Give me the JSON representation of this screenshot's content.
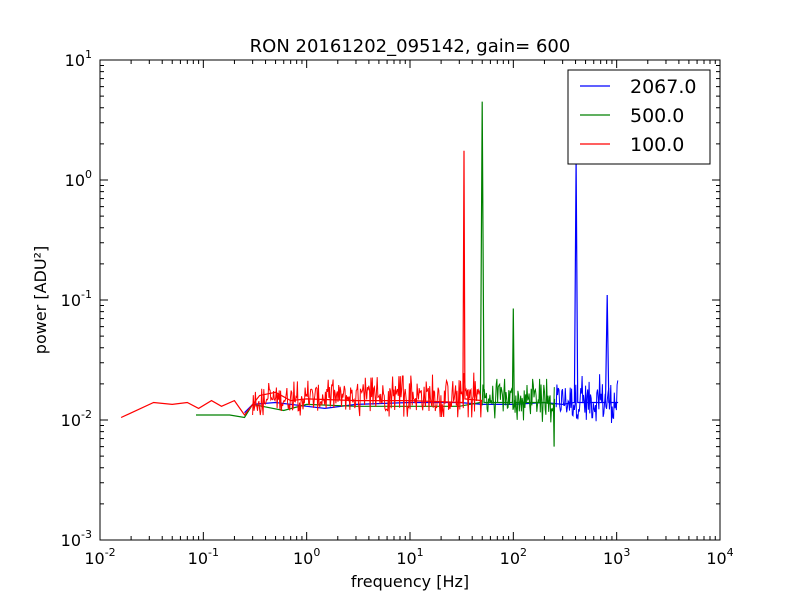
{
  "chart_data": {
    "type": "line",
    "title": "RON 20161202_095142, gain= 600",
    "xlabel": "frequency [Hz]",
    "ylabel": "power [ADU²]",
    "xscale": "log",
    "yscale": "log",
    "xlim": [
      0.01,
      10000
    ],
    "ylim": [
      0.001,
      10
    ],
    "grid": false,
    "legend_position": "top-right",
    "x_ticks": [
      {
        "base": "10",
        "exp": "-2"
      },
      {
        "base": "10",
        "exp": "-1"
      },
      {
        "base": "10",
        "exp": "0"
      },
      {
        "base": "10",
        "exp": "1"
      },
      {
        "base": "10",
        "exp": "2"
      },
      {
        "base": "10",
        "exp": "3"
      },
      {
        "base": "10",
        "exp": "4"
      }
    ],
    "y_ticks": [
      {
        "base": "10",
        "exp": "-3"
      },
      {
        "base": "10",
        "exp": "-2"
      },
      {
        "base": "10",
        "exp": "-1"
      },
      {
        "base": "10",
        "exp": "0"
      },
      {
        "base": "10",
        "exp": "1"
      }
    ],
    "series": [
      {
        "name": "2067.0",
        "color": "#0000ff",
        "points": [
          [
            0.25,
            0.0115
          ],
          [
            0.3,
            0.0135
          ],
          [
            0.5,
            0.014
          ],
          [
            1.0,
            0.013
          ],
          [
            1.5,
            0.0125
          ],
          [
            3,
            0.0135
          ],
          [
            10,
            0.014
          ],
          [
            30,
            0.014
          ],
          [
            50,
            0.0135
          ],
          [
            100,
            0.0135
          ],
          [
            200,
            0.014
          ],
          [
            300,
            0.0135
          ],
          [
            390,
            0.014
          ],
          [
            405,
            1.5
          ],
          [
            420,
            0.014
          ],
          [
            600,
            0.014
          ],
          [
            780,
            0.014
          ],
          [
            810,
            0.11
          ],
          [
            840,
            0.014
          ],
          [
            1033,
            0.014
          ]
        ],
        "noise_band": [
          [
            260,
            0.0095,
            0.022
          ],
          [
            1033,
            0.008,
            0.025
          ]
        ]
      },
      {
        "name": "500.0",
        "color": "#008000",
        "points": [
          [
            0.085,
            0.011
          ],
          [
            0.18,
            0.011
          ],
          [
            0.25,
            0.0105
          ],
          [
            0.3,
            0.0135
          ],
          [
            0.6,
            0.012
          ],
          [
            1.0,
            0.0135
          ],
          [
            3,
            0.013
          ],
          [
            10,
            0.013
          ],
          [
            30,
            0.013
          ],
          [
            48,
            0.014
          ],
          [
            50,
            4.5
          ],
          [
            52,
            0.014
          ],
          [
            98,
            0.014
          ],
          [
            100,
            0.085
          ],
          [
            102,
            0.014
          ],
          [
            200,
            0.014
          ],
          [
            245,
            0.0135
          ],
          [
            248,
            0.006
          ],
          [
            250,
            0.015
          ]
        ],
        "noise_band": [
          [
            50,
            0.0105,
            0.022
          ],
          [
            250,
            0.0095,
            0.022
          ]
        ]
      },
      {
        "name": "100.0",
        "color": "#ff0000",
        "points": [
          [
            0.016,
            0.0105
          ],
          [
            0.033,
            0.014
          ],
          [
            0.05,
            0.0135
          ],
          [
            0.07,
            0.014
          ],
          [
            0.09,
            0.0125
          ],
          [
            0.12,
            0.0145
          ],
          [
            0.15,
            0.013
          ],
          [
            0.2,
            0.0145
          ],
          [
            0.25,
            0.011
          ],
          [
            0.35,
            0.016
          ],
          [
            0.5,
            0.017
          ],
          [
            0.7,
            0.0145
          ],
          [
            1.0,
            0.015
          ],
          [
            3,
            0.0145
          ],
          [
            10,
            0.0145
          ],
          [
            32.5,
            0.014
          ],
          [
            33.3,
            1.75
          ],
          [
            34,
            0.015
          ],
          [
            50,
            0.0145
          ]
        ],
        "noise_band": [
          [
            0.3,
            0.011,
            0.02
          ],
          [
            50,
            0.0105,
            0.025
          ]
        ]
      }
    ]
  }
}
